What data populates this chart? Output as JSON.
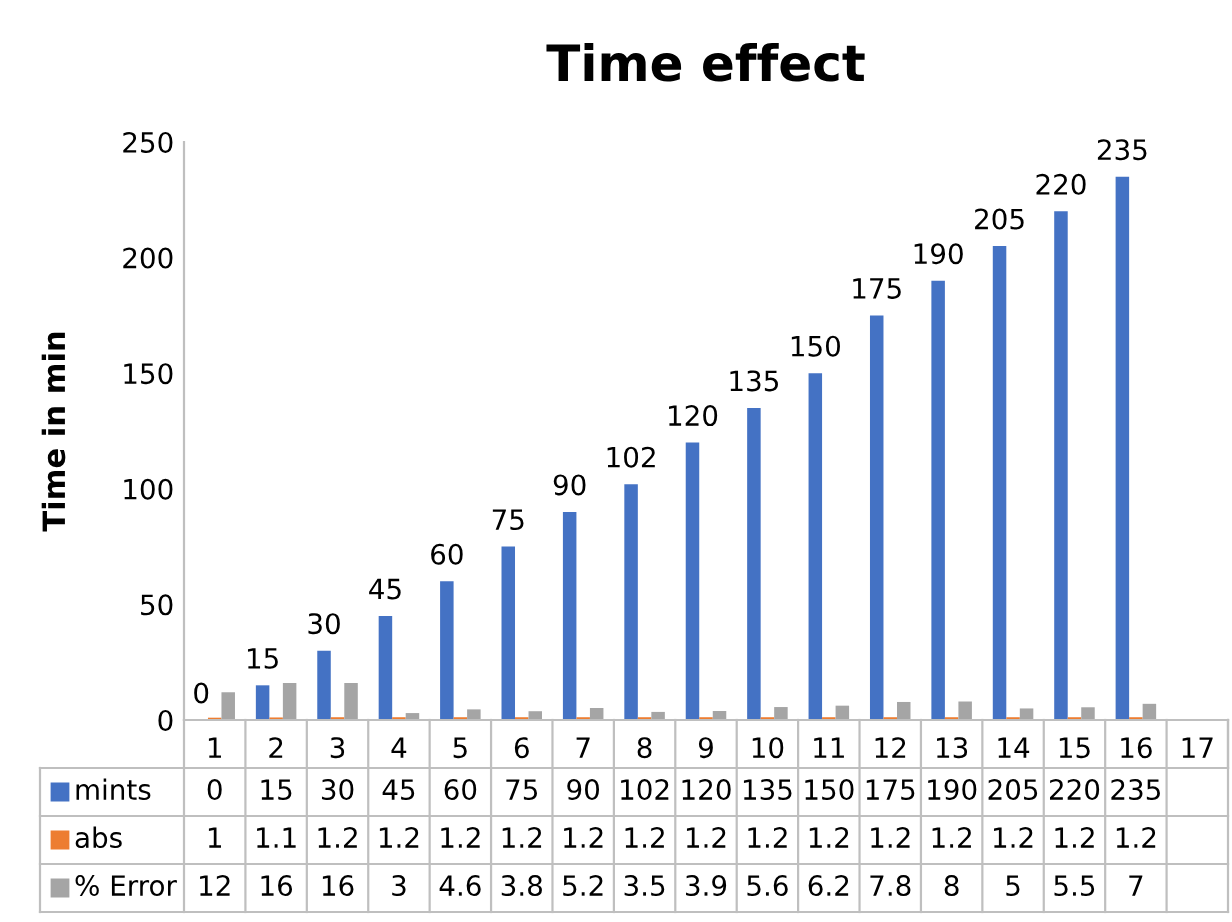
{
  "chart_data": {
    "type": "bar",
    "title": "Time effect",
    "ylabel": "Time in min",
    "categories": [
      "1",
      "2",
      "3",
      "4",
      "5",
      "6",
      "7",
      "8",
      "9",
      "10",
      "11",
      "12",
      "13",
      "14",
      "15",
      "16",
      "17"
    ],
    "series": [
      {
        "name": "mints",
        "color": "#4472c4",
        "values": [
          0,
          15,
          30,
          45,
          60,
          75,
          90,
          102,
          120,
          135,
          150,
          175,
          190,
          205,
          220,
          235,
          null
        ]
      },
      {
        "name": "abs",
        "color": "#ed7d31",
        "values": [
          1,
          1.1,
          1.2,
          1.2,
          1.2,
          1.2,
          1.2,
          1.2,
          1.2,
          1.2,
          1.2,
          1.2,
          1.2,
          1.2,
          1.2,
          1.2,
          null
        ]
      },
      {
        "name": "% Error",
        "color": "#a5a5a5",
        "values": [
          12,
          16,
          16,
          3,
          4.6,
          3.8,
          5.2,
          3.5,
          3.9,
          5.6,
          6.2,
          7.8,
          8,
          5,
          5.5,
          7,
          null
        ]
      }
    ],
    "ylim": [
      0,
      250
    ],
    "yticks": [
      0,
      50,
      100,
      150,
      200,
      250
    ],
    "grid": false,
    "legend": "bottom",
    "data_labels": true,
    "annotations": [
      {
        "text": "0",
        "x": "1",
        "y": 0
      },
      {
        "text": "15",
        "x": "2",
        "y": 15
      },
      {
        "text": "30",
        "x": "3",
        "y": 30
      },
      {
        "text": "45",
        "x": "4",
        "y": 45
      },
      {
        "text": "60",
        "x": "5",
        "y": 60
      },
      {
        "text": "75",
        "x": "6",
        "y": 75
      },
      {
        "text": "90",
        "x": "7",
        "y": 90
      },
      {
        "text": "102",
        "x": "8",
        "y": 102
      },
      {
        "text": "120",
        "x": "9",
        "y": 120
      },
      {
        "text": "135",
        "x": "10",
        "y": 135
      },
      {
        "text": "150",
        "x": "11",
        "y": 150
      },
      {
        "text": "175",
        "x": "12",
        "y": 175
      },
      {
        "text": "190",
        "x": "13",
        "y": 190
      },
      {
        "text": "205",
        "x": "14",
        "y": 205
      },
      {
        "text": "220",
        "x": "15",
        "y": 220
      },
      {
        "text": "235",
        "x": "16",
        "y": 235
      }
    ]
  }
}
